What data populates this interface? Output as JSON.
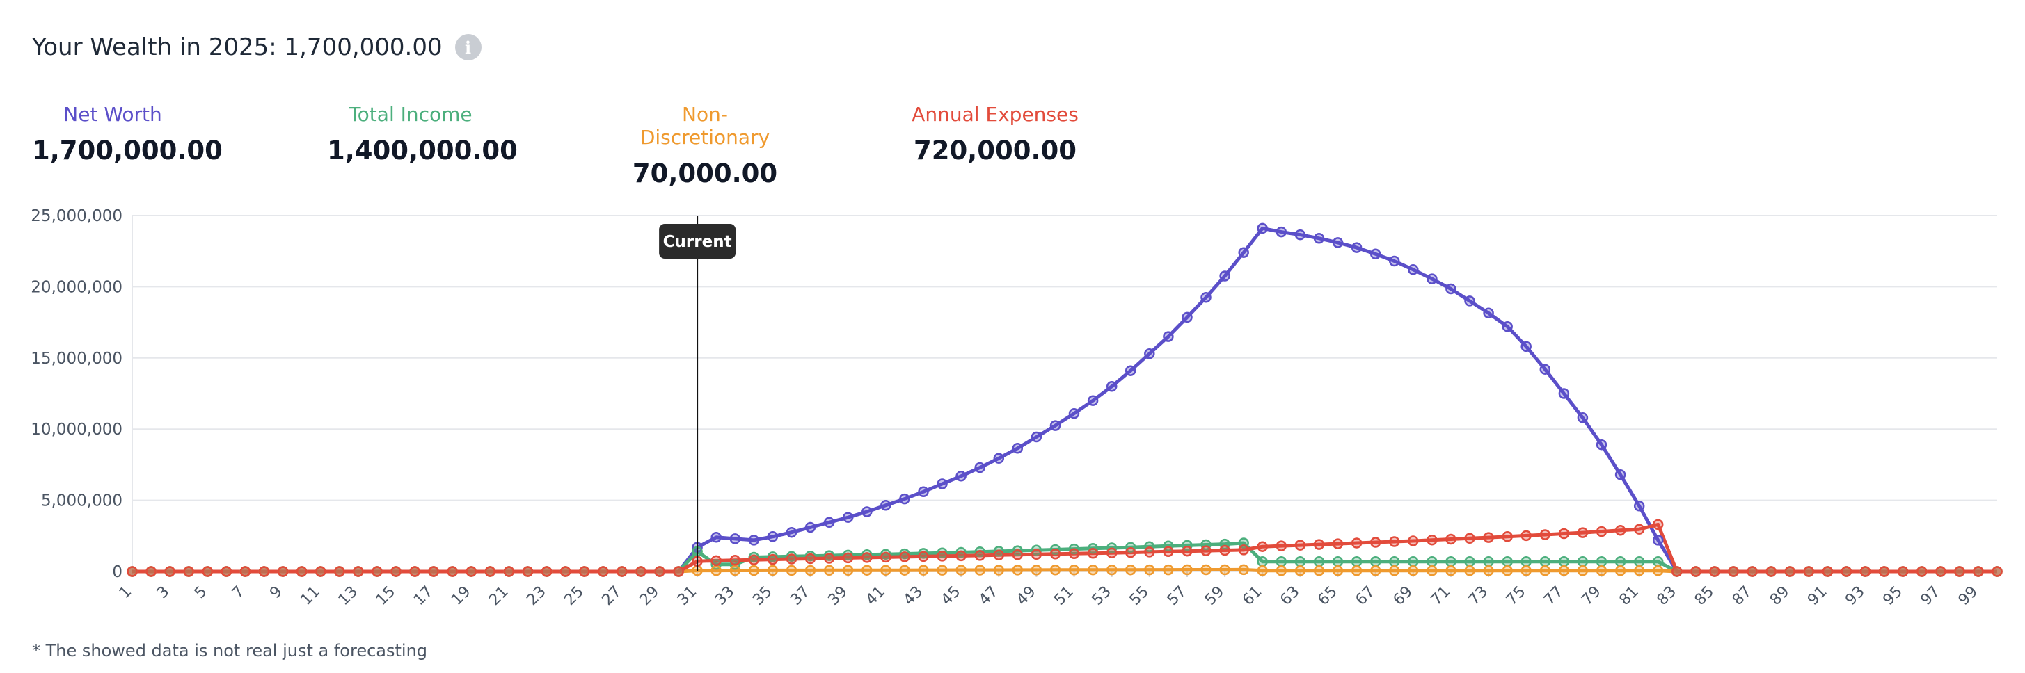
{
  "header": {
    "title": "Your Wealth in 2025: 1,700,000.00",
    "info_icon": "info-icon"
  },
  "stats": [
    {
      "label": "Net Worth",
      "value": "1,700,000.00",
      "color": "#5b4fc9"
    },
    {
      "label": "Total Income",
      "value": "1,400,000.00",
      "color": "#4caf7d"
    },
    {
      "label": "Non-Discretionary",
      "value": "70,000.00",
      "color": "#ef9a2f"
    },
    {
      "label": "Annual Expenses",
      "value": "720,000.00",
      "color": "#e24b3b"
    }
  ],
  "footnote": "* The showed data is not real just a forecasting",
  "chart_data": {
    "type": "line",
    "x": [
      1,
      2,
      3,
      4,
      5,
      6,
      7,
      8,
      9,
      10,
      11,
      12,
      13,
      14,
      15,
      16,
      17,
      18,
      19,
      20,
      21,
      22,
      23,
      24,
      25,
      26,
      27,
      28,
      29,
      30,
      31,
      32,
      33,
      34,
      35,
      36,
      37,
      38,
      39,
      40,
      41,
      42,
      43,
      44,
      45,
      46,
      47,
      48,
      49,
      50,
      51,
      52,
      53,
      54,
      55,
      56,
      57,
      58,
      59,
      60,
      61,
      62,
      63,
      64,
      65,
      66,
      67,
      68,
      69,
      70,
      71,
      72,
      73,
      74,
      75,
      76,
      77,
      78,
      79,
      80,
      81,
      82,
      83,
      84,
      85,
      86,
      87,
      88,
      89,
      90,
      91,
      92,
      93,
      94,
      95,
      96,
      97,
      98,
      99,
      100
    ],
    "xticks": [
      "1",
      "3",
      "5",
      "7",
      "9",
      "11",
      "13",
      "15",
      "17",
      "19",
      "21",
      "23",
      "25",
      "27",
      "29",
      "31",
      "33",
      "35",
      "37",
      "39",
      "41",
      "43",
      "45",
      "47",
      "49",
      "51",
      "53",
      "55",
      "57",
      "59",
      "61",
      "63",
      "65",
      "67",
      "69",
      "71",
      "73",
      "75",
      "77",
      "79",
      "81",
      "83",
      "85",
      "87",
      "89",
      "91",
      "93",
      "95",
      "97",
      "99"
    ],
    "yticks": [
      "0",
      "5,000,000",
      "10,000,000",
      "15,000,000",
      "20,000,000",
      "25,000,000"
    ],
    "ylim": [
      0,
      25000000
    ],
    "marker": {
      "x": 31,
      "label": "Current"
    },
    "grid": true,
    "series": [
      {
        "name": "Net Worth",
        "color": "#5b4fc9",
        "values": [
          0,
          0,
          0,
          0,
          0,
          0,
          0,
          0,
          0,
          0,
          0,
          0,
          0,
          0,
          0,
          0,
          0,
          0,
          0,
          0,
          0,
          0,
          0,
          0,
          0,
          0,
          0,
          0,
          0,
          0,
          1700000,
          2400000,
          2300000,
          2200000,
          2450000,
          2750000,
          3100000,
          3450000,
          3800000,
          4200000,
          4650000,
          5100000,
          5600000,
          6150000,
          6700000,
          7300000,
          7950000,
          8650000,
          9450000,
          10250000,
          11100000,
          12000000,
          13000000,
          14100000,
          15300000,
          16500000,
          17850000,
          19250000,
          20750000,
          22400000,
          24100000,
          23850000,
          23650000,
          23400000,
          23100000,
          22750000,
          22300000,
          21800000,
          21200000,
          20550000,
          19850000,
          19000000,
          18150000,
          17200000,
          15800000,
          14200000,
          12500000,
          10800000,
          8900000,
          6800000,
          4600000,
          2200000,
          0,
          0,
          0,
          0,
          0,
          0,
          0,
          0,
          0,
          0,
          0,
          0,
          0,
          0,
          0,
          0,
          0,
          0
        ]
      },
      {
        "name": "Total Income",
        "color": "#4caf7d",
        "values": [
          0,
          0,
          0,
          0,
          0,
          0,
          0,
          0,
          0,
          0,
          0,
          0,
          0,
          0,
          0,
          0,
          0,
          0,
          0,
          0,
          0,
          0,
          0,
          0,
          0,
          0,
          0,
          0,
          0,
          0,
          1400000,
          500000,
          500000,
          1000000,
          1030000,
          1060000,
          1090000,
          1120000,
          1150000,
          1180000,
          1210000,
          1240000,
          1275000,
          1310000,
          1345000,
          1380000,
          1420000,
          1460000,
          1500000,
          1540000,
          1580000,
          1620000,
          1660000,
          1700000,
          1745000,
          1790000,
          1835000,
          1880000,
          1925000,
          2000000,
          700000,
          700000,
          700000,
          700000,
          700000,
          700000,
          700000,
          700000,
          700000,
          700000,
          700000,
          700000,
          700000,
          700000,
          700000,
          700000,
          700000,
          700000,
          700000,
          700000,
          700000,
          700000,
          0,
          0,
          0,
          0,
          0,
          0,
          0,
          0,
          0,
          0,
          0,
          0,
          0,
          0,
          0,
          0,
          0,
          0
        ]
      },
      {
        "name": "Non-Discretionary",
        "color": "#ef9a2f",
        "values": [
          0,
          0,
          0,
          0,
          0,
          0,
          0,
          0,
          0,
          0,
          0,
          0,
          0,
          0,
          0,
          0,
          0,
          0,
          0,
          0,
          0,
          0,
          0,
          0,
          0,
          0,
          0,
          0,
          0,
          0,
          70000,
          70000,
          72000,
          74000,
          76000,
          78000,
          80000,
          82000,
          84000,
          86000,
          88000,
          90000,
          92000,
          94000,
          96000,
          98000,
          100000,
          102000,
          104000,
          106000,
          108000,
          110000,
          112000,
          114000,
          116000,
          118000,
          120000,
          122000,
          124000,
          126000,
          60000,
          60000,
          60000,
          60000,
          60000,
          60000,
          60000,
          60000,
          60000,
          60000,
          60000,
          60000,
          60000,
          60000,
          60000,
          60000,
          60000,
          60000,
          60000,
          60000,
          60000,
          60000,
          0,
          0,
          0,
          0,
          0,
          0,
          0,
          0,
          0,
          0,
          0,
          0,
          0,
          0,
          0,
          0,
          0,
          0
        ]
      },
      {
        "name": "Annual Expenses",
        "color": "#e24b3b",
        "values": [
          0,
          0,
          0,
          0,
          0,
          0,
          0,
          0,
          0,
          0,
          0,
          0,
          0,
          0,
          0,
          0,
          0,
          0,
          0,
          0,
          0,
          0,
          0,
          0,
          0,
          0,
          0,
          0,
          0,
          0,
          720000,
          760000,
          790000,
          820000,
          850000,
          880000,
          905000,
          930000,
          955000,
          980000,
          1005000,
          1030000,
          1055000,
          1080000,
          1105000,
          1130000,
          1155000,
          1180000,
          1205000,
          1230000,
          1255000,
          1280000,
          1310000,
          1340000,
          1370000,
          1400000,
          1430000,
          1460000,
          1490000,
          1520000,
          1750000,
          1800000,
          1850000,
          1900000,
          1950000,
          2000000,
          2050000,
          2100000,
          2150000,
          2210000,
          2270000,
          2330000,
          2390000,
          2450000,
          2520000,
          2590000,
          2660000,
          2730000,
          2810000,
          2890000,
          2970000,
          3300000,
          0,
          0,
          0,
          0,
          0,
          0,
          0,
          0,
          0,
          0,
          0,
          0,
          0,
          0,
          0,
          0,
          0,
          0
        ]
      }
    ]
  }
}
